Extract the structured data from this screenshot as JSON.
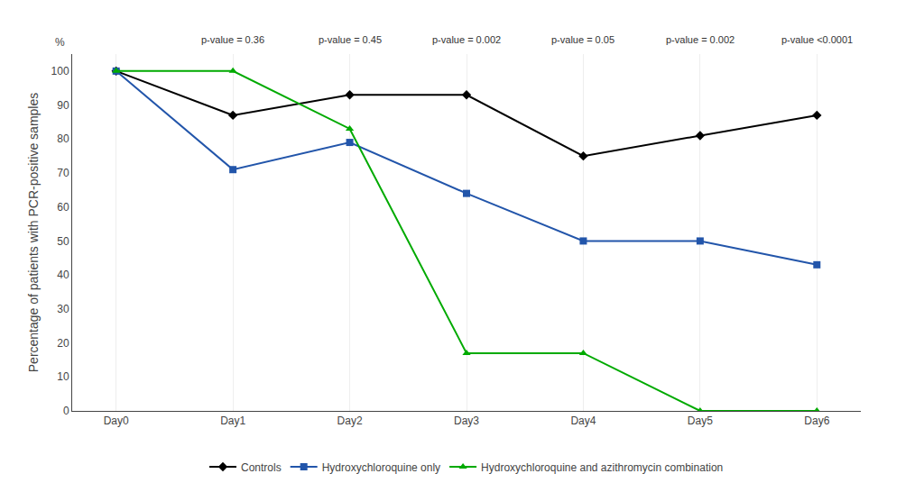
{
  "chart_data": {
    "type": "line",
    "categories": [
      "Day0",
      "Day1",
      "Day2",
      "Day3",
      "Day4",
      "Day5",
      "Day6"
    ],
    "series": [
      {
        "name": "Controls",
        "color": "#000000",
        "marker": "diamond",
        "values": [
          100,
          87,
          93,
          93,
          75,
          81,
          87
        ]
      },
      {
        "name": "Hydroxychloroquine only",
        "color": "#2255AA",
        "marker": "square",
        "values": [
          100,
          71,
          79,
          64,
          50,
          50,
          43
        ]
      },
      {
        "name": "Hydroxychloroquine and azithromycin combination",
        "color": "#00AA00",
        "marker": "triangle-up",
        "values": [
          100,
          100,
          83,
          17,
          17,
          0,
          0
        ]
      }
    ],
    "ylabel": "Percentage of patients with PCR-positive samples",
    "ylim": [
      0,
      105
    ],
    "yticks": [
      0,
      10,
      20,
      30,
      40,
      50,
      60,
      70,
      80,
      90,
      100
    ],
    "annotations": [
      {
        "text": "%"
      },
      {
        "category": "Day1",
        "text": "p-value = 0.36"
      },
      {
        "category": "Day2",
        "text": "p-value = 0.45"
      },
      {
        "category": "Day3",
        "text": "p-value = 0.002"
      },
      {
        "category": "Day4",
        "text": "p-value = 0.05"
      },
      {
        "category": "Day5",
        "text": "p-value = 0.002"
      },
      {
        "category": "Day6",
        "text": "p-value <0.0001"
      }
    ],
    "grid": "x",
    "legend": "bottom"
  }
}
